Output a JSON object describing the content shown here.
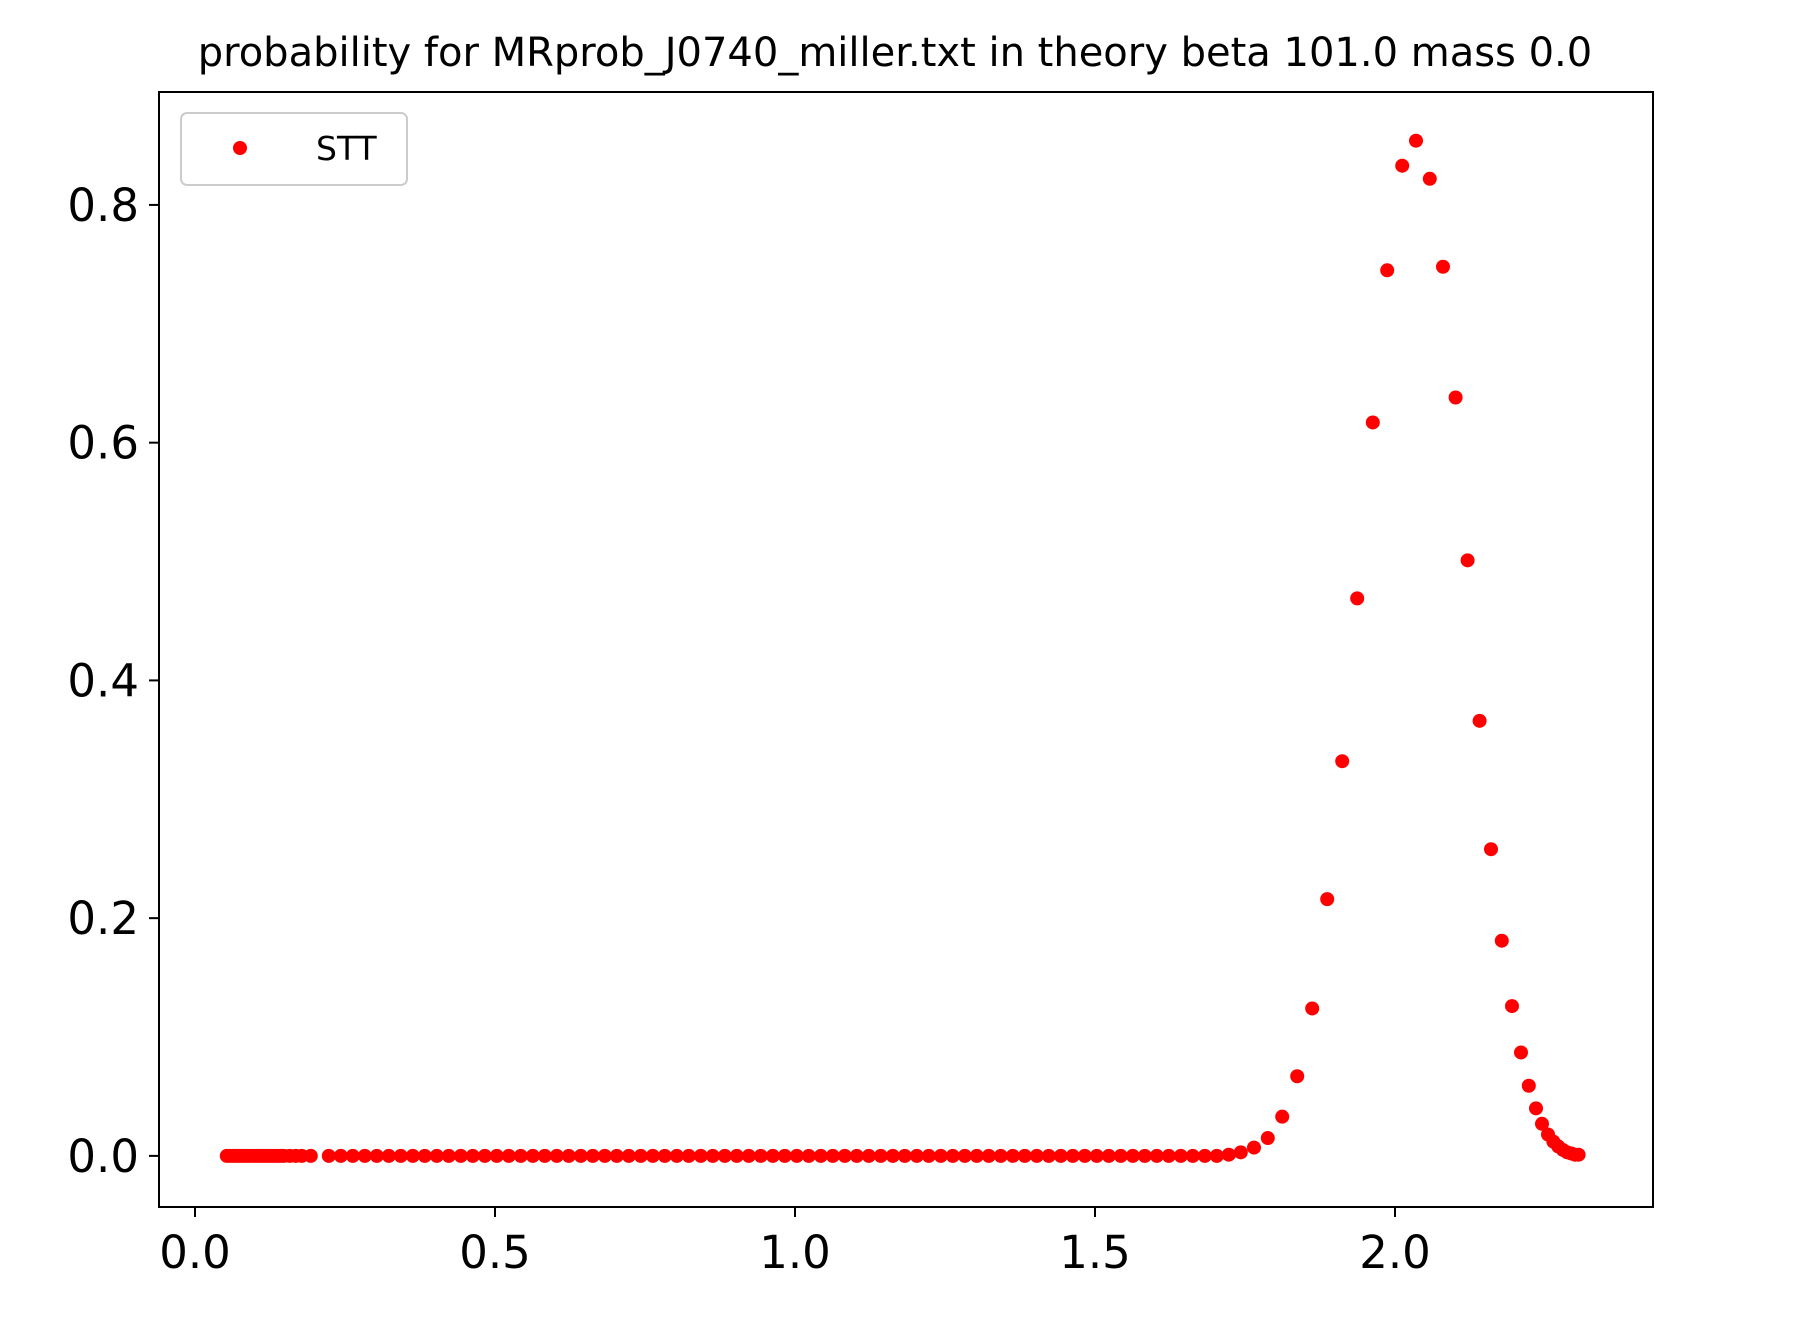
{
  "chart_data": {
    "type": "scatter",
    "title": "probability for MRprob_J0740_miller.txt in theory beta 101.0 mass 0.0",
    "xlabel": "",
    "ylabel": "",
    "xlim": [
      -0.06,
      2.43
    ],
    "ylim": [
      -0.043,
      0.895
    ],
    "xticks": [
      0.0,
      0.5,
      1.0,
      1.5,
      2.0
    ],
    "xtick_labels": [
      "0.0",
      "0.5",
      "1.0",
      "1.5",
      "2.0"
    ],
    "yticks": [
      0.0,
      0.2,
      0.4,
      0.6,
      0.8
    ],
    "ytick_labels": [
      "0.0",
      "0.2",
      "0.4",
      "0.6",
      "0.8"
    ],
    "grid": false,
    "legend": {
      "position": "upper-left"
    },
    "series": [
      {
        "name": "STT",
        "color": "#ff0000",
        "marker": "circle",
        "x": [
          0.053,
          0.058,
          0.063,
          0.068,
          0.073,
          0.078,
          0.083,
          0.088,
          0.093,
          0.098,
          0.103,
          0.108,
          0.113,
          0.118,
          0.123,
          0.128,
          0.133,
          0.138,
          0.143,
          0.148,
          0.158,
          0.168,
          0.178,
          0.193,
          0.223,
          0.243,
          0.263,
          0.283,
          0.303,
          0.323,
          0.343,
          0.363,
          0.383,
          0.403,
          0.423,
          0.443,
          0.463,
          0.483,
          0.503,
          0.523,
          0.543,
          0.563,
          0.583,
          0.603,
          0.623,
          0.643,
          0.663,
          0.683,
          0.703,
          0.723,
          0.743,
          0.763,
          0.783,
          0.803,
          0.823,
          0.843,
          0.863,
          0.883,
          0.903,
          0.923,
          0.943,
          0.963,
          0.983,
          1.003,
          1.023,
          1.043,
          1.063,
          1.083,
          1.103,
          1.123,
          1.143,
          1.163,
          1.183,
          1.203,
          1.223,
          1.243,
          1.263,
          1.283,
          1.303,
          1.323,
          1.343,
          1.363,
          1.383,
          1.403,
          1.423,
          1.443,
          1.463,
          1.483,
          1.503,
          1.523,
          1.543,
          1.563,
          1.583,
          1.603,
          1.623,
          1.643,
          1.663,
          1.683,
          1.703,
          1.723,
          1.743,
          1.765,
          1.788,
          1.812,
          1.837,
          1.862,
          1.887,
          1.912,
          1.937,
          1.963,
          1.987,
          2.012,
          2.035,
          2.058,
          2.08,
          2.101,
          2.121,
          2.141,
          2.16,
          2.178,
          2.195,
          2.21,
          2.223,
          2.235,
          2.245,
          2.255,
          2.264,
          2.272,
          2.28,
          2.287,
          2.294,
          2.3,
          2.306
        ],
        "y": [
          0.0,
          0.0,
          0.0,
          0.0,
          0.0,
          0.0,
          0.0,
          0.0,
          0.0,
          0.0,
          0.0,
          0.0,
          0.0,
          0.0,
          0.0,
          0.0,
          0.0,
          0.0,
          0.0,
          0.0,
          0.0,
          0.0,
          0.0,
          0.0,
          0.0,
          0.0,
          0.0,
          0.0,
          0.0,
          0.0,
          0.0,
          0.0,
          0.0,
          0.0,
          0.0,
          0.0,
          0.0,
          0.0,
          0.0,
          0.0,
          0.0,
          0.0,
          0.0,
          0.0,
          0.0,
          0.0,
          0.0,
          0.0,
          0.0,
          0.0,
          0.0,
          0.0,
          0.0,
          0.0,
          0.0,
          0.0,
          0.0,
          0.0,
          0.0,
          0.0,
          0.0,
          0.0,
          0.0,
          0.0,
          0.0,
          0.0,
          0.0,
          0.0,
          0.0,
          0.0,
          0.0,
          0.0,
          0.0,
          0.0,
          0.0,
          0.0,
          0.0,
          0.0,
          0.0,
          0.0,
          0.0,
          0.0,
          0.0,
          0.0,
          0.0,
          0.0,
          0.0,
          0.0,
          0.0,
          0.0,
          0.0,
          0.0,
          0.0,
          0.0,
          0.0,
          0.0,
          0.0,
          0.0,
          0.0,
          0.001,
          0.003,
          0.007,
          0.015,
          0.033,
          0.067,
          0.124,
          0.216,
          0.332,
          0.469,
          0.617,
          0.745,
          0.833,
          0.854,
          0.822,
          0.748,
          0.638,
          0.501,
          0.366,
          0.258,
          0.181,
          0.126,
          0.087,
          0.059,
          0.04,
          0.027,
          0.018,
          0.012,
          0.008,
          0.005,
          0.003,
          0.002,
          0.001,
          0.001
        ]
      }
    ]
  }
}
